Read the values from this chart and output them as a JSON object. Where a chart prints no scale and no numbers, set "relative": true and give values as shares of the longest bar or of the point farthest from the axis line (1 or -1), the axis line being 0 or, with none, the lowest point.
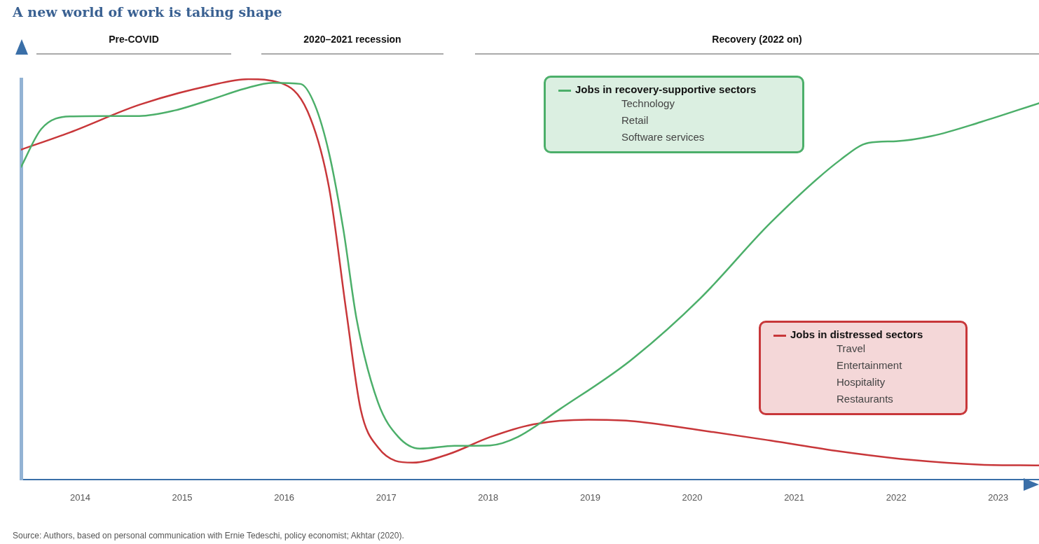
{
  "chart_data": {
    "type": "line",
    "title": "A new world of work is taking shape",
    "relative": true,
    "xlim": [
      2013.42,
      2023.4
    ],
    "xticks": [
      2014,
      2015,
      2016,
      2017,
      2018,
      2019,
      2020,
      2021,
      2022,
      2023
    ],
    "series": [
      {
        "name": "Jobs in recovery-supportive sectors",
        "color": "#4caf6a",
        "x": [
          2013.42,
          2013.62,
          2013.9,
          2014.24,
          2014.58,
          2014.93,
          2015.27,
          2015.61,
          2015.89,
          2016.16,
          2016.3,
          2016.44,
          2016.58,
          2016.71,
          2016.92,
          2017.12,
          2017.33,
          2017.67,
          2018.02,
          2018.29,
          2018.7,
          2019.39,
          2020.08,
          2020.77,
          2021.45,
          2021.73,
          2022.0,
          2022.35,
          2022.83,
          2023.4
        ],
        "values": [
          0.781,
          0.876,
          0.907,
          0.908,
          0.908,
          0.922,
          0.948,
          0.976,
          0.991,
          0.988,
          0.936,
          0.815,
          0.625,
          0.401,
          0.193,
          0.107,
          0.078,
          0.085,
          0.086,
          0.107,
          0.176,
          0.297,
          0.453,
          0.642,
          0.798,
          0.841,
          0.845,
          0.858,
          0.893,
          0.94
        ]
      },
      {
        "name": "Jobs in distressed sectors",
        "color": "#c8373a",
        "x": [
          2013.42,
          2013.9,
          2014.58,
          2015.27,
          2015.65,
          2015.96,
          2016.23,
          2016.44,
          2016.61,
          2016.75,
          2016.92,
          2017.26,
          2017.61,
          2018.02,
          2018.43,
          2018.98,
          2019.39,
          2020.08,
          2020.77,
          2021.45,
          2022.14,
          2022.83,
          2023.4
        ],
        "values": [
          0.824,
          0.867,
          0.936,
          0.984,
          1.0,
          0.991,
          0.919,
          0.729,
          0.418,
          0.176,
          0.081,
          0.043,
          0.064,
          0.107,
          0.138,
          0.15,
          0.147,
          0.124,
          0.098,
          0.071,
          0.05,
          0.038,
          0.036
        ]
      }
    ],
    "annotations": [
      "Pre-COVID",
      "2020–2021 recession",
      "Recovery (2022 on)",
      "Technology\nRetail\nSoftware services",
      "Travel\nEntertainment\nHospitality\nRestaurants",
      "Source: Authors, based on personal communication with Ernie Tedeschi, policy economist; Akhtar (2020)."
    ],
    "legend": "right",
    "grid": false,
    "marker": "none",
    "line_style": "solid"
  }
}
